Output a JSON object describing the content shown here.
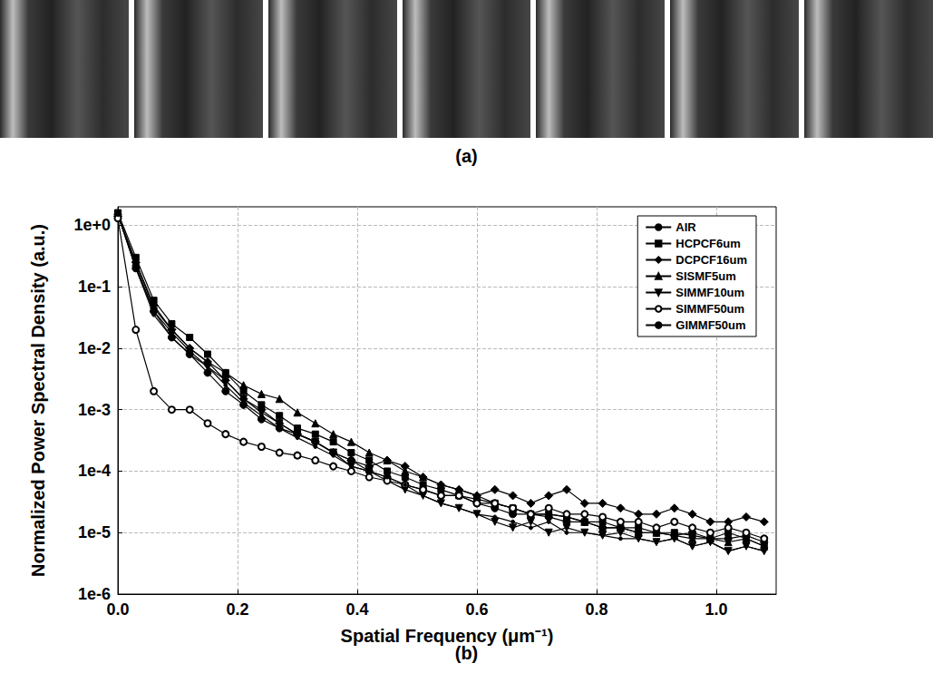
{
  "image_strip": {
    "label": "(a)",
    "images": 7
  },
  "chart_data": {
    "type": "line",
    "panel_label": "(b)",
    "x_label": "Spatial Frequency (μm⁻¹)",
    "y_label": "Normalized Power Spectral Density (a.u.)",
    "log": "y",
    "grid": true,
    "legend": "upper right",
    "xlim": [
      0,
      1.1
    ],
    "xticks": [
      {
        "value": 0,
        "label": "0.0"
      },
      0.2,
      0.4,
      0.6,
      0.8,
      {
        "value": 1,
        "label": "1.0"
      }
    ],
    "ylim": [
      1e-06,
      2
    ],
    "yticks": [
      {
        "value": 1e-06,
        "label": "1e-6"
      },
      {
        "value": 1e-05,
        "label": "1e-5"
      },
      {
        "value": 0.0001,
        "label": "1e-4"
      },
      {
        "value": 0.001,
        "label": "1e-3"
      },
      {
        "value": 0.01,
        "label": "1e-2"
      },
      {
        "value": 0.1,
        "label": "1e-1"
      },
      {
        "value": 1,
        "label": "1e+0"
      }
    ],
    "x": [
      0,
      0.03,
      0.06,
      0.09,
      0.12,
      0.15,
      0.18,
      0.21,
      0.24,
      0.27,
      0.3,
      0.33,
      0.36,
      0.39,
      0.42,
      0.45,
      0.48,
      0.51,
      0.54,
      0.57,
      0.6,
      0.63,
      0.66,
      0.69,
      0.72,
      0.75,
      0.78,
      0.81,
      0.84,
      0.87,
      0.9,
      0.93,
      0.96,
      0.99,
      1.02,
      1.05,
      1.08
    ],
    "series": [
      {
        "name": "AIR",
        "color": "#000000",
        "marker": "circle",
        "values": [
          1.5,
          0.2,
          0.04,
          0.015,
          0.008,
          0.004,
          0.002,
          0.0012,
          0.0007,
          0.0005,
          0.0004,
          0.0003,
          0.0002,
          0.00015,
          0.0001,
          8e-05,
          6e-05,
          5e-05,
          4e-05,
          4e-05,
          3e-05,
          2.5e-05,
          2e-05,
          2e-05,
          1.8e-05,
          1.5e-05,
          1.5e-05,
          1.2e-05,
          1.2e-05,
          1e-05,
          1e-05,
          9e-06,
          1e-05,
          8e-06,
          8e-06,
          9e-06,
          7e-06
        ]
      },
      {
        "name": "HCPCF6um",
        "color": "#000000",
        "marker": "square",
        "values": [
          1.6,
          0.3,
          0.06,
          0.025,
          0.015,
          0.008,
          0.004,
          0.002,
          0.0012,
          0.0008,
          0.0005,
          0.0004,
          0.0003,
          0.0002,
          0.00015,
          0.0001,
          8e-05,
          6e-05,
          5e-05,
          4e-05,
          3.5e-05,
          3e-05,
          2.5e-05,
          2e-05,
          2e-05,
          1.8e-05,
          1.5e-05,
          1.5e-05,
          1.2e-05,
          1.2e-05,
          1e-05,
          1e-05,
          9e-06,
          8e-06,
          1e-05,
          8e-06,
          6e-06
        ]
      },
      {
        "name": "DCPCF16um",
        "color": "#000000",
        "marker": "diamond",
        "values": [
          1.4,
          0.25,
          0.05,
          0.02,
          0.01,
          0.006,
          0.003,
          0.0015,
          0.001,
          0.0006,
          0.0004,
          0.0003,
          0.0002,
          0.00015,
          0.00012,
          0.00015,
          0.00012,
          8e-05,
          6e-05,
          5e-05,
          4e-05,
          5e-05,
          4e-05,
          3e-05,
          4e-05,
          5e-05,
          3e-05,
          3e-05,
          2.5e-05,
          2e-05,
          2e-05,
          2.5e-05,
          2e-05,
          1.5e-05,
          1.5e-05,
          1.8e-05,
          1.5e-05
        ]
      },
      {
        "name": "SISMF5um",
        "color": "#000000",
        "marker": "triangle",
        "values": [
          1.5,
          0.25,
          0.045,
          0.02,
          0.01,
          0.006,
          0.004,
          0.0025,
          0.0018,
          0.0015,
          0.0009,
          0.0006,
          0.0004,
          0.0003,
          0.0002,
          0.00015,
          0.0001,
          8e-05,
          6e-05,
          5e-05,
          4e-05,
          3e-05,
          2.5e-05,
          2e-05,
          2e-05,
          1.8e-05,
          1.5e-05,
          1.2e-05,
          1.2e-05,
          1e-05,
          1e-05,
          9e-06,
          8e-06,
          8e-06,
          7e-06,
          8e-06,
          6e-06
        ]
      },
      {
        "name": "SIMMF10um",
        "color": "#000000",
        "marker": "triangle-down",
        "values": [
          1.5,
          0.22,
          0.04,
          0.018,
          0.009,
          0.005,
          0.003,
          0.0015,
          0.0009,
          0.0006,
          0.0004,
          0.0003,
          0.0002,
          0.00012,
          0.0001,
          7e-05,
          5e-05,
          4e-05,
          3e-05,
          2.5e-05,
          2e-05,
          1.5e-05,
          1.2e-05,
          1.5e-05,
          1e-05,
          1.2e-05,
          1e-05,
          9e-06,
          1e-05,
          8e-06,
          7e-06,
          8e-06,
          6e-06,
          7e-06,
          5e-06,
          6e-06,
          5e-06
        ]
      },
      {
        "name": "SIMMF50um",
        "color": "#000000",
        "marker": "circle-open",
        "values": [
          1.3,
          0.02,
          0.002,
          0.001,
          0.001,
          0.0006,
          0.0004,
          0.0003,
          0.00025,
          0.0002,
          0.00018,
          0.00015,
          0.00012,
          0.0001,
          8e-05,
          7e-05,
          6e-05,
          5e-05,
          4e-05,
          4e-05,
          3e-05,
          3e-05,
          2.5e-05,
          2e-05,
          2.5e-05,
          2e-05,
          2e-05,
          1.8e-05,
          1.5e-05,
          1.5e-05,
          1.2e-05,
          1.5e-05,
          1.2e-05,
          1e-05,
          1.2e-05,
          1e-05,
          8e-06
        ]
      },
      {
        "name": "GIMMF50um",
        "color": "#000000",
        "marker": "dot",
        "values": [
          1.5,
          0.2,
          0.035,
          0.015,
          0.008,
          0.005,
          0.0025,
          0.0013,
          0.0008,
          0.0005,
          0.00035,
          0.00025,
          0.00018,
          0.00012,
          0.0001,
          8e-05,
          6e-05,
          4e-05,
          3e-05,
          2.5e-05,
          2e-05,
          1.8e-05,
          1.5e-05,
          1.2e-05,
          1.5e-05,
          1e-05,
          1e-05,
          9e-06,
          8e-06,
          8e-06,
          7e-06,
          8e-06,
          6e-06,
          7e-06,
          5e-06,
          6e-06,
          5e-06
        ]
      }
    ]
  }
}
